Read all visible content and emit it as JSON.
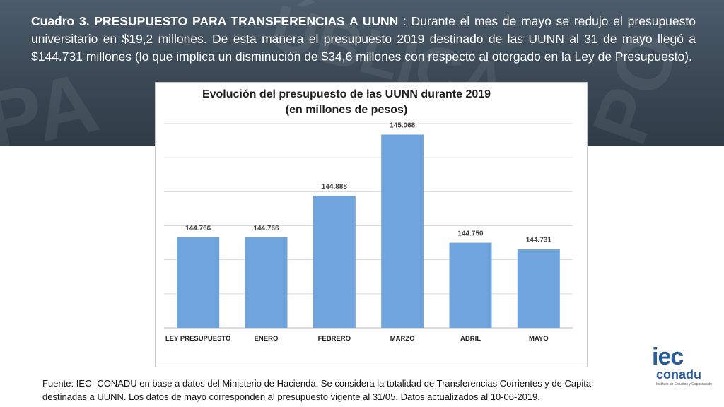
{
  "header": {
    "label": "Cuadro 3. PRESUPUESTO PARA TRANSFERENCIAS A UUNN",
    "text": " : Durante el mes de mayo se redujo el presupuesto universitario en $19,2 millones. De esta manera el presupuesto 2019 destinado de las UUNN al 31 de mayo llegó a $144.731 millones (lo que implica un disminución de $34,6 millones con respecto al otorgado en la Ley de Presupuesto)."
  },
  "chart_data": {
    "type": "bar",
    "title_line1": "Evolución del presupuesto de las UUNN durante 2019",
    "title_line2": "(en millones de pesos)",
    "categories": [
      "LEY PRESUPUESTO",
      "ENERO",
      "FEBRERO",
      "MARZO",
      "ABRIL",
      "MAYO"
    ],
    "values": [
      144.766,
      144.766,
      144.888,
      145.068,
      144.75,
      144.731
    ],
    "value_labels": [
      "144.766",
      "144.766",
      "144.888",
      "145.068",
      "144.750",
      "144.731"
    ],
    "ylim": [
      144.5,
      145.1
    ],
    "grid": true,
    "bar_color": "#6fa5dc",
    "xlabel": "",
    "ylabel": ""
  },
  "footer": {
    "note": "Fuente: IEC- CONADU en base a datos del Ministerio de Hacienda. Se considera la totalidad de Transferencias Corrientes y de Capital destinadas a UUNN. Los datos de mayo corresponden al presupuesto vigente al 31/05. Datos actualizados al 10-06-2019."
  },
  "logo": {
    "brand_top": "iec",
    "brand_bottom": "conadu",
    "subtitle": "Instituto de Estudios y Capacitación",
    "color": "#2a5c9a"
  }
}
